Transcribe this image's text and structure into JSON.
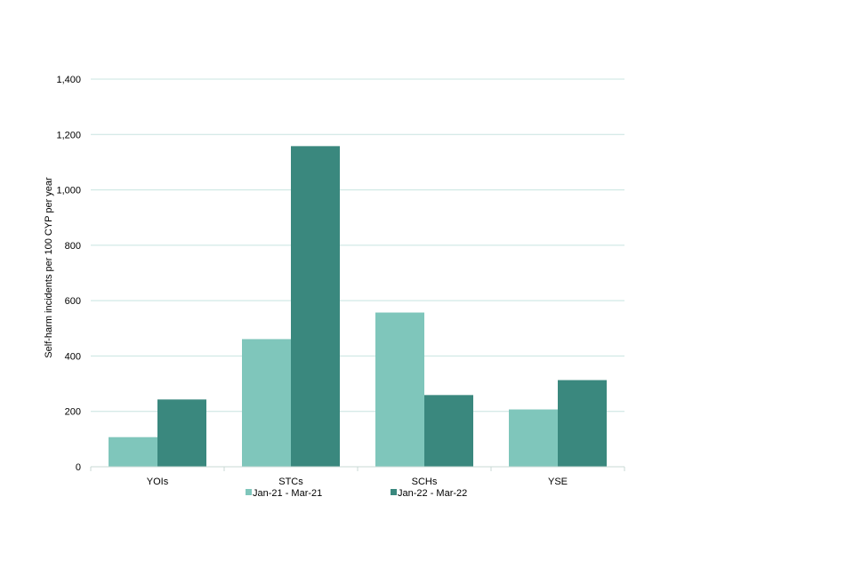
{
  "chart_data": {
    "type": "bar",
    "title": "",
    "xlabel": "",
    "ylabel": "Self-harm incidents per 100 CYP per year",
    "categories": [
      "YOIs",
      "STCs",
      "SCHs",
      "YSE"
    ],
    "series": [
      {
        "name": "Jan-21 - Mar-21",
        "color": "#7fc6bb",
        "values": [
          107,
          461,
          557,
          207
        ]
      },
      {
        "name": "Jan-22 - Mar-22",
        "color": "#3a887e",
        "values": [
          243,
          1158,
          259,
          313
        ]
      }
    ],
    "ylim": [
      0,
      1400
    ],
    "yticks": [
      0,
      200,
      400,
      600,
      800,
      1000,
      1200,
      1400
    ],
    "ytick_labels": [
      "0",
      "200",
      "400",
      "600",
      "800",
      "1,000",
      "1,200",
      "1,400"
    ],
    "grid": true,
    "legend_position": "bottom"
  }
}
